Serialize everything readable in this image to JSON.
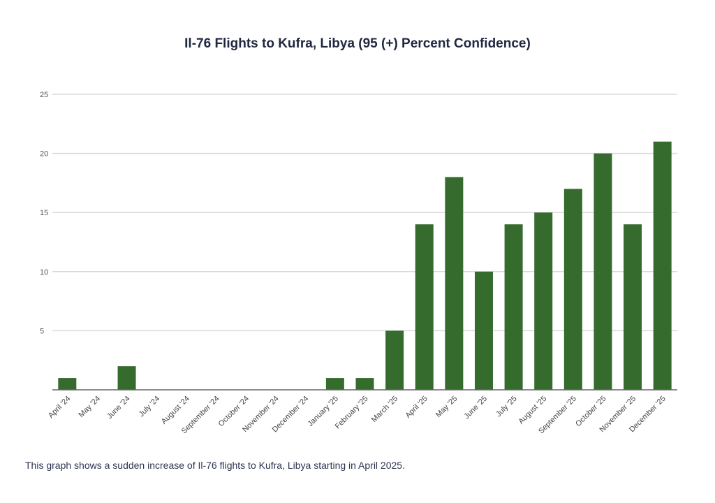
{
  "chart_data": {
    "type": "bar",
    "title": "Il-76 Flights  to Kufra, Libya  (95 (+) Percent Confidence)",
    "xlabel": "",
    "ylabel": "",
    "ylim": [
      0,
      25
    ],
    "yticks": [
      5,
      10,
      15,
      20,
      25
    ],
    "grid": true,
    "legend": "none",
    "categories": [
      "April '24",
      "May '24",
      "June '24",
      "July '24",
      "August '24",
      "September '24",
      "October '24",
      "November '24",
      "December '24",
      "January '25",
      "February '25",
      "March '25",
      "April '25",
      "May '25",
      "June '25",
      "July '25",
      "August '25",
      "September '25",
      "October '25",
      "November '25",
      "December '25"
    ],
    "values": [
      1,
      0,
      2,
      0,
      0,
      0,
      0,
      0,
      0,
      1,
      1,
      5,
      14,
      18,
      10,
      14,
      15,
      17,
      20,
      14,
      21
    ]
  },
  "colors": {
    "bar": "#356b2d",
    "grid": "#d9d9d9",
    "axis": "#666666"
  },
  "caption": "This graph shows a sudden increase of Il-76 flights to Kufra, Libya starting in April 2025."
}
